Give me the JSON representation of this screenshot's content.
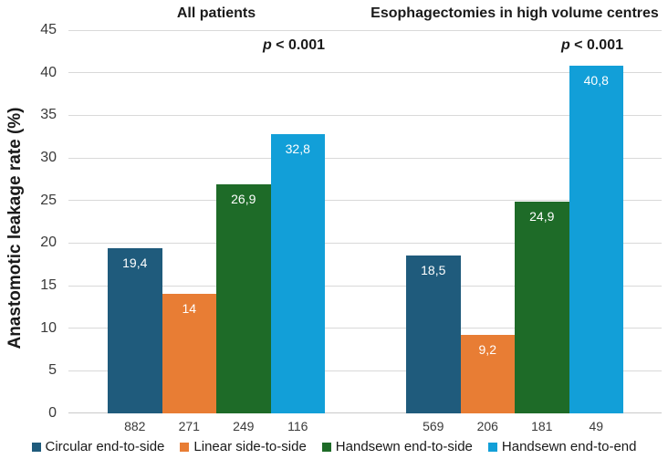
{
  "chart_data": {
    "type": "bar",
    "title": "",
    "ylabel": "Anastomotic leakage rate (%)",
    "xlabel": "",
    "ylim": [
      0,
      45
    ],
    "ytick_step": 5,
    "grid": "horizontal",
    "legend_position": "bottom",
    "decimal_separator": ",",
    "categories": [
      "All patients",
      "Esophagectomies in high volume centres"
    ],
    "series": [
      {
        "name": "Circular end-to-side",
        "color": "#1f5b7c",
        "values": [
          19.4,
          18.5
        ],
        "value_labels": [
          "19,4",
          "18,5"
        ],
        "n": [
          882,
          569
        ]
      },
      {
        "name": "Linear side-to-side",
        "color": "#e87d34",
        "values": [
          14,
          9.2
        ],
        "value_labels": [
          "14",
          "9,2"
        ],
        "n": [
          271,
          206
        ]
      },
      {
        "name": "Handsewn end-to-side",
        "color": "#1e6b28",
        "values": [
          26.9,
          24.9
        ],
        "value_labels": [
          "26,9",
          "24,9"
        ],
        "n": [
          249,
          181
        ]
      },
      {
        "name": "Handsewn end-to-end",
        "color": "#129fd8",
        "values": [
          32.8,
          40.8
        ],
        "value_labels": [
          "32,8",
          "40,8"
        ],
        "n": [
          116,
          49
        ]
      }
    ],
    "annotations": [
      {
        "group": "All patients",
        "text": "p < 0.001"
      },
      {
        "group": "Esophagectomies in high volume centres",
        "text": "p < 0.001"
      }
    ],
    "x_category_sublabels_note": "numbers under bars are group sizes (n)",
    "colors": {
      "gridline": "#d9d9d9",
      "tick_text": "#3a3a3a",
      "title_text": "#1a1a1a",
      "bar_value_text": "#ffffff"
    }
  }
}
